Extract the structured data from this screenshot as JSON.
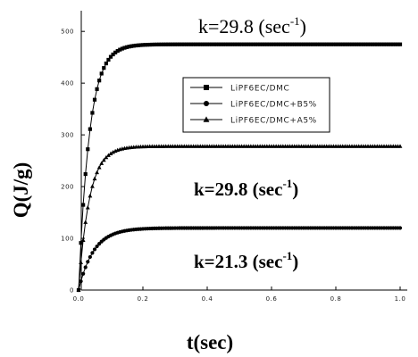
{
  "chart_data": {
    "type": "line",
    "title": "",
    "xlabel": "t(sec)",
    "ylabel": "Q(J/g)",
    "xlim": [
      0,
      1.05
    ],
    "ylim": [
      0,
      540
    ],
    "xticks": [
      "0.0",
      "0.2",
      "0.4",
      "0.6",
      "0.8",
      "1.0"
    ],
    "xtick_values": [
      0,
      0.2,
      0.4,
      0.6,
      0.8,
      1.0
    ],
    "yticks": [
      "0",
      "100",
      "200",
      "300",
      "400",
      "500"
    ],
    "ytick_values": [
      0,
      100,
      200,
      300,
      400,
      500
    ],
    "grid": false,
    "legend_position": "top-right",
    "series": [
      {
        "name": "LiPF6EC/DMC",
        "marker": "square",
        "plateau": 475,
        "k": 29.8
      },
      {
        "name": "LiPF6EC/DMC+B5%",
        "marker": "circle",
        "plateau": 120,
        "k": 21.3
      },
      {
        "name": "LiPF6EC/DMC+A5%",
        "marker": "triangle",
        "plateau": 278,
        "k": 29.8
      }
    ],
    "annotations": [
      {
        "id": "top",
        "text": "k=29.8 (sec",
        "sup": "-1",
        "close": ")"
      },
      {
        "id": "mid",
        "text": "k=29.8 (sec",
        "sup": "-1",
        "close": ")"
      },
      {
        "id": "low",
        "text": "k=21.3 (sec",
        "sup": "-1",
        "close": ")"
      }
    ]
  }
}
